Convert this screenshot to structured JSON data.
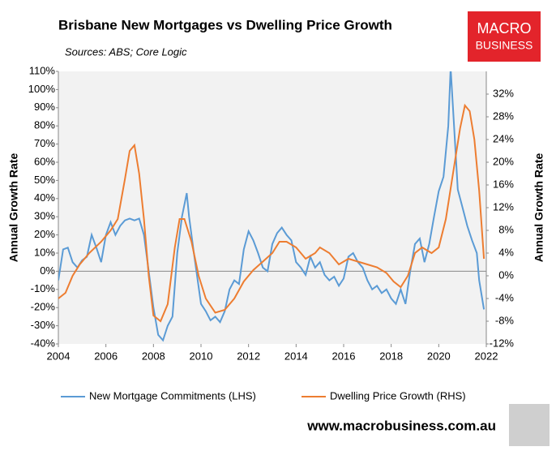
{
  "chart_data": {
    "type": "line",
    "title": "Brisbane New Mortgages vs Dwelling Price Growth",
    "subtitle": "Sources: ABS; Core Logic",
    "logo": [
      "MACRO",
      "BUSINESS"
    ],
    "website": "www.macrobusiness.com.au",
    "ylabel": "Annual Growth Rate",
    "y2label": "Annual Growth Rate",
    "xlim": [
      2004,
      2022
    ],
    "xticks": [
      2004,
      2006,
      2008,
      2010,
      2012,
      2014,
      2016,
      2018,
      2020,
      2022
    ],
    "ylim": [
      -40,
      110
    ],
    "yticks": [
      {
        "value": -40,
        "label": "-40%"
      },
      {
        "value": -30,
        "label": "-30%"
      },
      {
        "value": -20,
        "label": "-20%"
      },
      {
        "value": -10,
        "label": "-10%"
      },
      {
        "value": 0,
        "label": "0%"
      },
      {
        "value": 10,
        "label": "10%"
      },
      {
        "value": 20,
        "label": "20%"
      },
      {
        "value": 30,
        "label": "30%"
      },
      {
        "value": 40,
        "label": "40%"
      },
      {
        "value": 50,
        "label": "50%"
      },
      {
        "value": 60,
        "label": "60%"
      },
      {
        "value": 70,
        "label": "70%"
      },
      {
        "value": 80,
        "label": "80%"
      },
      {
        "value": 90,
        "label": "90%"
      },
      {
        "value": 100,
        "label": "100%"
      },
      {
        "value": 110,
        "label": "110%"
      }
    ],
    "y2lim": [
      -12,
      36
    ],
    "y2ticks": [
      {
        "value": -12,
        "label": "-12%"
      },
      {
        "value": -8,
        "label": "-8%"
      },
      {
        "value": -4,
        "label": "-4%"
      },
      {
        "value": 0,
        "label": "0%"
      },
      {
        "value": 4,
        "label": "4%"
      },
      {
        "value": 8,
        "label": "8%"
      },
      {
        "value": 12,
        "label": "12%"
      },
      {
        "value": 16,
        "label": "16%"
      },
      {
        "value": 20,
        "label": "20%"
      },
      {
        "value": 24,
        "label": "24%"
      },
      {
        "value": 28,
        "label": "28%"
      },
      {
        "value": 32,
        "label": "32%"
      }
    ],
    "series": [
      {
        "name": "New Mortgage Commitments (LHS)",
        "color": "#5b9bd5",
        "x": [
          2004.0,
          2004.2,
          2004.4,
          2004.6,
          2004.8,
          2005.0,
          2005.2,
          2005.4,
          2005.6,
          2005.8,
          2006.0,
          2006.2,
          2006.4,
          2006.6,
          2006.8,
          2007.0,
          2007.2,
          2007.4,
          2007.6,
          2007.8,
          2008.0,
          2008.2,
          2008.4,
          2008.6,
          2008.8,
          2009.0,
          2009.2,
          2009.4,
          2009.5,
          2009.7,
          2010.0,
          2010.2,
          2010.4,
          2010.6,
          2010.8,
          2011.0,
          2011.2,
          2011.4,
          2011.6,
          2011.8,
          2012.0,
          2012.2,
          2012.4,
          2012.6,
          2012.8,
          2013.0,
          2013.2,
          2013.4,
          2013.6,
          2013.8,
          2014.0,
          2014.2,
          2014.4,
          2014.6,
          2014.8,
          2015.0,
          2015.2,
          2015.4,
          2015.6,
          2015.8,
          2016.0,
          2016.2,
          2016.4,
          2016.6,
          2016.8,
          2017.0,
          2017.2,
          2017.4,
          2017.6,
          2017.8,
          2018.0,
          2018.2,
          2018.4,
          2018.6,
          2018.8,
          2019.0,
          2019.2,
          2019.4,
          2019.6,
          2019.8,
          2020.0,
          2020.2,
          2020.4,
          2020.5,
          2020.6,
          2020.8,
          2021.0,
          2021.2,
          2021.4,
          2021.6,
          2021.7,
          2021.9
        ],
        "values": [
          -5,
          12,
          13,
          5,
          2,
          6,
          8,
          20,
          13,
          5,
          20,
          27,
          20,
          25,
          28,
          29,
          28,
          29,
          20,
          0,
          -20,
          -35,
          -38,
          -30,
          -25,
          10,
          30,
          43,
          30,
          10,
          -18,
          -22,
          -27,
          -25,
          -28,
          -22,
          -10,
          -5,
          -7,
          12,
          22,
          17,
          10,
          2,
          0,
          15,
          21,
          24,
          20,
          17,
          5,
          2,
          -2,
          8,
          2,
          5,
          -2,
          -5,
          -3,
          -8,
          -4,
          8,
          10,
          5,
          2,
          -5,
          -10,
          -8,
          -12,
          -10,
          -15,
          -18,
          -10,
          -18,
          0,
          15,
          18,
          5,
          15,
          30,
          44,
          52,
          80,
          112,
          90,
          45,
          35,
          25,
          17,
          10,
          -5,
          -21
        ]
      },
      {
        "name": "Dwelling Price Growth (RHS)",
        "color": "#ed7d31",
        "axis": "y2",
        "x": [
          2004.0,
          2004.3,
          2004.6,
          2004.9,
          2005.3,
          2005.8,
          2006.2,
          2006.5,
          2006.8,
          2007.0,
          2007.2,
          2007.4,
          2007.6,
          2007.8,
          2008.0,
          2008.3,
          2008.6,
          2008.9,
          2009.1,
          2009.3,
          2009.6,
          2009.9,
          2010.2,
          2010.6,
          2011.0,
          2011.4,
          2011.8,
          2012.2,
          2012.6,
          2013.0,
          2013.3,
          2013.6,
          2014.0,
          2014.4,
          2014.8,
          2015.0,
          2015.4,
          2015.8,
          2016.2,
          2016.6,
          2017.0,
          2017.4,
          2017.8,
          2018.1,
          2018.4,
          2018.7,
          2019.0,
          2019.3,
          2019.7,
          2020.0,
          2020.3,
          2020.6,
          2020.9,
          2021.1,
          2021.3,
          2021.5,
          2021.7,
          2021.9
        ],
        "values": [
          -4,
          -3,
          0,
          2,
          4,
          6,
          8,
          10,
          17,
          22,
          23,
          18,
          10,
          0,
          -7,
          -8,
          -5,
          5,
          10,
          10,
          6,
          0,
          -4,
          -6.5,
          -6,
          -4,
          -1,
          1,
          2.5,
          4,
          6,
          6,
          5,
          3,
          4,
          5,
          4,
          2,
          3,
          2.5,
          2,
          1.5,
          0.5,
          -1,
          -2,
          0,
          4,
          5,
          4,
          5,
          10,
          18,
          26,
          30,
          29,
          24,
          15,
          3
        ]
      }
    ]
  }
}
